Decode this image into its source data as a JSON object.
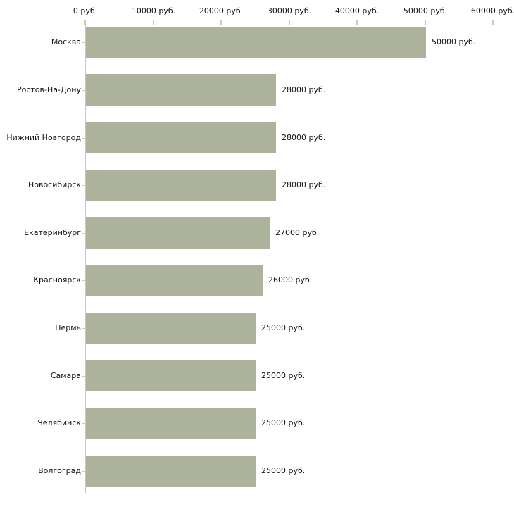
{
  "chart_data": {
    "type": "bar",
    "orientation": "horizontal",
    "title": "",
    "categories": [
      "Москва",
      "Ростов-На-Дону",
      "Нижний Новгород",
      "Новосибирск",
      "Екатеринбург",
      "Красноярск",
      "Пермь",
      "Самара",
      "Челябинск",
      "Волгоград"
    ],
    "values": [
      50000,
      28000,
      28000,
      28000,
      27000,
      26000,
      25000,
      25000,
      25000,
      25000
    ],
    "bar_labels": [
      "50000 руб.",
      "28000 руб.",
      "28000 руб.",
      "28000 руб.",
      "27000 руб.",
      "26000 руб.",
      "25000 руб.",
      "25000 руб.",
      "25000 руб.",
      "25000 руб."
    ],
    "unit": "руб.",
    "x_axis": {
      "position": "top",
      "range": [
        0,
        60000
      ],
      "ticks": [
        0,
        10000,
        20000,
        30000,
        40000,
        50000,
        60000
      ],
      "tick_labels": [
        "0 руб.",
        "10000 руб.",
        "20000 руб.",
        "30000 руб.",
        "40000 руб.",
        "50000 руб.",
        "60000 руб."
      ]
    },
    "grid": false,
    "legend": false,
    "colors": {
      "bar_fill": "#adb29a",
      "axis_line": "#c6c6c6",
      "axis_tick": "#c9cbaa",
      "category_tick": "#ccc9bb",
      "text": "#111111",
      "background": "#ffffff"
    }
  }
}
